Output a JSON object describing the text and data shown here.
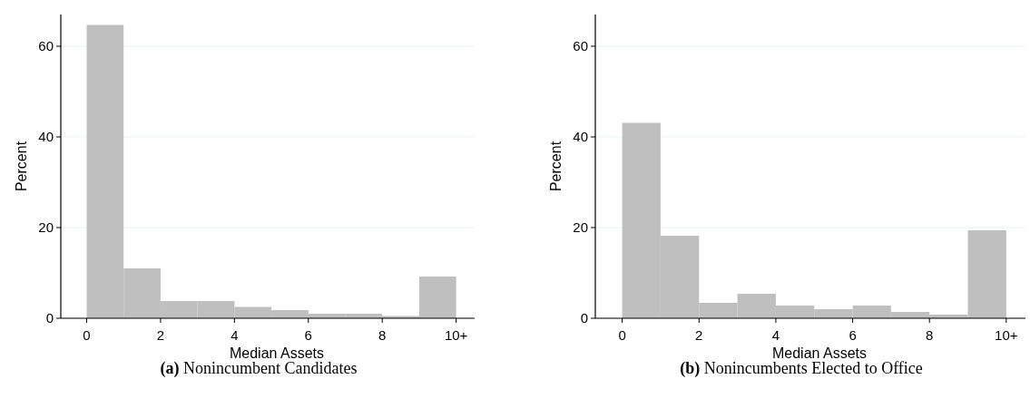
{
  "chart_data": [
    {
      "type": "histogram",
      "title": "(a) Nonincumbent Candidates",
      "xlabel": "Median Assets",
      "ylabel": "Percent",
      "bins": [
        0,
        1,
        2,
        3,
        4,
        5,
        6,
        7,
        8,
        9,
        10
      ],
      "values": [
        64.7,
        11.0,
        3.8,
        3.8,
        2.5,
        1.8,
        1.0,
        1.0,
        0.5,
        9.2
      ],
      "color": "#bfbfbf",
      "xlim": [
        -0.7,
        10.5
      ],
      "xticks": [
        0,
        2,
        4,
        6,
        8,
        {
          "value": 10,
          "label": "10+"
        }
      ],
      "ylim": [
        0,
        67
      ],
      "yticks": [
        0,
        20,
        40,
        60
      ],
      "grid": "y"
    },
    {
      "type": "histogram",
      "title": "(b) Nonincumbents Elected to Office",
      "xlabel": "Median Assets",
      "ylabel": "Percent",
      "bins": [
        0,
        1,
        2,
        3,
        4,
        5,
        6,
        7,
        8,
        9,
        10
      ],
      "values": [
        43.1,
        18.2,
        3.4,
        5.4,
        2.8,
        2.0,
        2.8,
        1.4,
        0.8,
        19.4
      ],
      "color": "#bfbfbf",
      "xlim": [
        -0.7,
        10.5
      ],
      "xticks": [
        0,
        2,
        4,
        6,
        8,
        {
          "value": 10,
          "label": "10+"
        }
      ],
      "ylim": [
        0,
        67
      ],
      "yticks": [
        0,
        20,
        40,
        60
      ],
      "grid": "y"
    }
  ]
}
